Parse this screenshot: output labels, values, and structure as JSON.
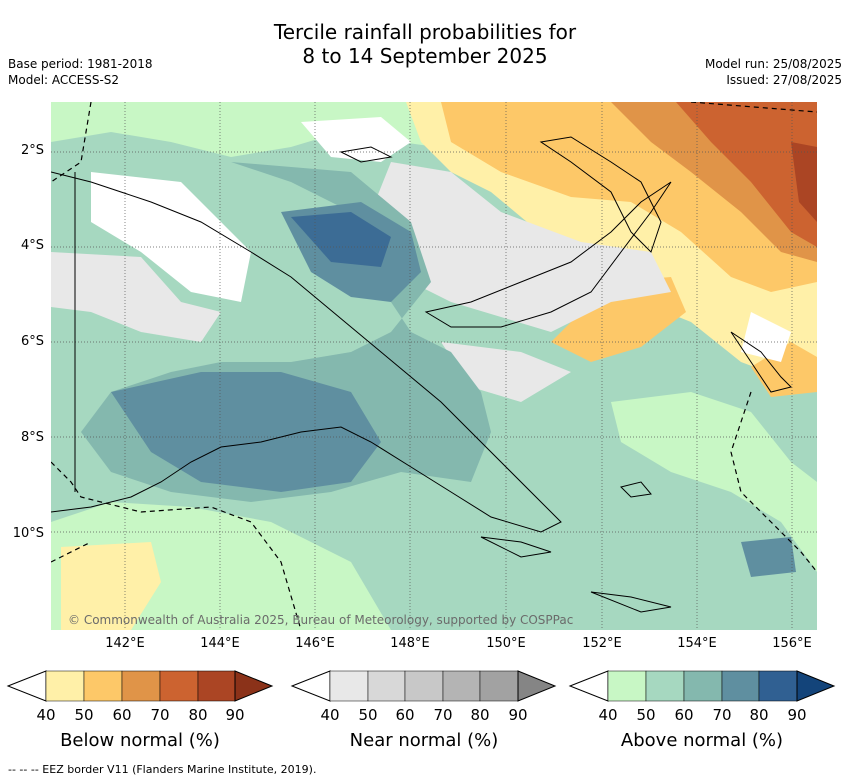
{
  "title_line1": "Tercile rainfall probabilities for",
  "title_line2": "8 to 14 September 2025",
  "meta_left": [
    "Base period: 1981-2018",
    "Model: ACCESS-S2"
  ],
  "meta_right": [
    "Model run: 25/08/2025",
    "Issued: 27/08/2025"
  ],
  "lat_ticks": [
    "2°S",
    "4°S",
    "6°S",
    "8°S",
    "10°S"
  ],
  "lon_ticks": [
    "142°E",
    "144°E",
    "146°E",
    "148°E",
    "150°E",
    "152°E",
    "154°E",
    "156°E"
  ],
  "copyright": "© Commonwealth of Australia 2025, Bureau of Meteorology, supported by COSPPac",
  "colorbars": [
    {
      "label": "Below normal (%)",
      "ticks": [
        "40",
        "50",
        "60",
        "70",
        "80",
        "90"
      ],
      "colors": [
        "#fff0a8",
        "#fdc868",
        "#e09448",
        "#cc6330",
        "#ab4524",
        "#8b3219"
      ]
    },
    {
      "label": "Near normal (%)",
      "ticks": [
        "40",
        "50",
        "60",
        "70",
        "80",
        "90"
      ],
      "colors": [
        "#e8e8e8",
        "#d8d8d8",
        "#c8c8c8",
        "#b4b4b4",
        "#a2a2a2",
        "#858585"
      ]
    },
    {
      "label": "Above normal (%)",
      "ticks": [
        "40",
        "50",
        "60",
        "70",
        "80",
        "90"
      ],
      "colors": [
        "#c8f7c5",
        "#a6d8c0",
        "#84b8ae",
        "#5f8fa0",
        "#306092",
        "#13447a"
      ]
    }
  ],
  "footnote": "--  --  -- EEZ border V11 (Flanders Marine Institute, 2019)."
}
